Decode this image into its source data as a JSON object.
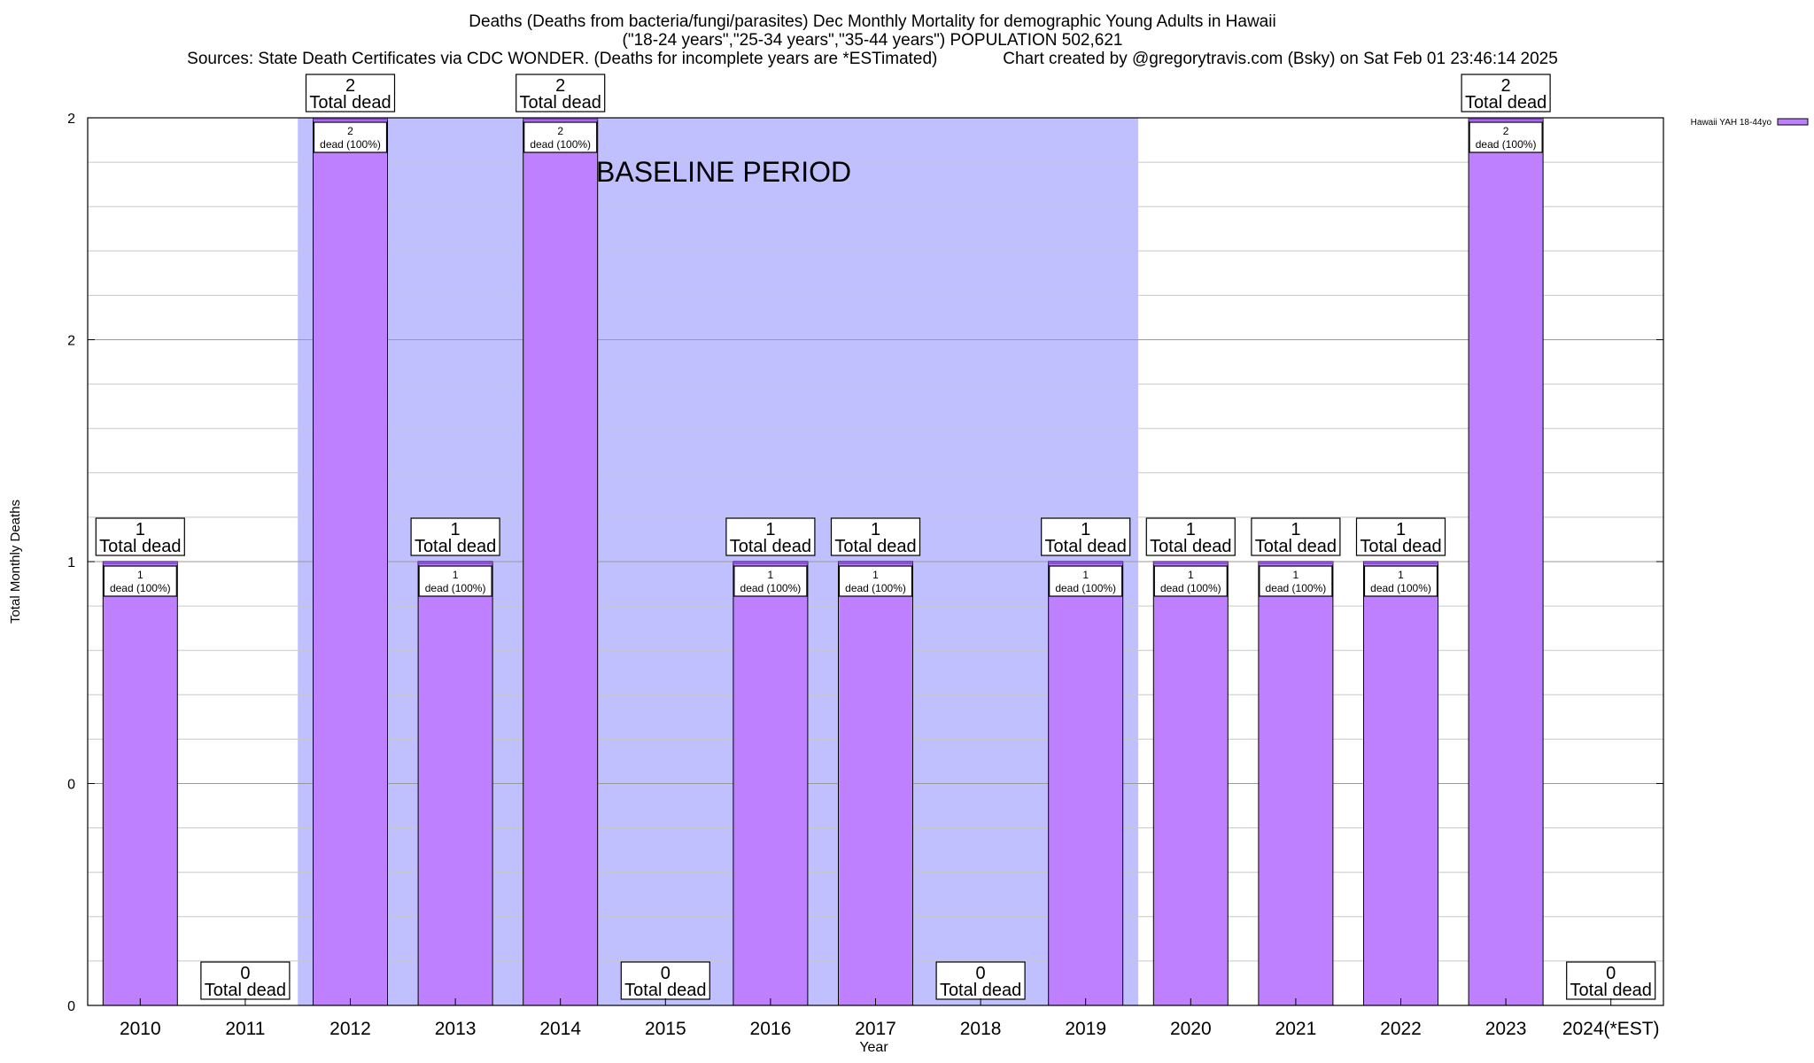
{
  "header": {
    "title_line1": "Deaths (Deaths from bacteria/fungi/parasites) Dec Monthly Mortality for demographic Young Adults in Hawaii",
    "title_line2": "(\"18-24 years\",\"25-34 years\",\"35-44 years\") POPULATION 502,621",
    "title_line3": "Sources: State Death Certificates via CDC WONDER. (Deaths for incomplete years are *ESTimated)              Chart created by @gregorytravis.com (Bsky) on Sat Feb 01 23:46:14 2025"
  },
  "chart_data": {
    "type": "bar",
    "categories": [
      "2010",
      "2011",
      "2012",
      "2013",
      "2014",
      "2015",
      "2016",
      "2017",
      "2018",
      "2019",
      "2020",
      "2021",
      "2022",
      "2023",
      "2024(*EST)"
    ],
    "series": [
      {
        "name": "Hawaii YAH 18-44yo",
        "color": "#bf80ff",
        "values": [
          1,
          0,
          2,
          1,
          2,
          0,
          1,
          1,
          0,
          1,
          1,
          1,
          1,
          2,
          0
        ]
      }
    ],
    "total_label_word": "Total dead",
    "inner_label_suffix": "dead (100%)",
    "xlabel": "Year",
    "ylabel": "Total Monthly Deaths",
    "ylim": [
      0,
      2
    ],
    "y_tick_labels": [
      "0",
      "0",
      "1",
      "2",
      "2"
    ],
    "y_tick_values": [
      0,
      0.5,
      1,
      1.5,
      2
    ],
    "minor_grid_step": 0.1,
    "grid": true,
    "legend": {
      "position": "top-right",
      "label": "Hawaii YAH 18-44yo"
    },
    "baseline_period": {
      "label": "BASELINE PERIOD",
      "start_category": "2012",
      "end_category": "2019",
      "color": "#c0c0ff"
    }
  }
}
